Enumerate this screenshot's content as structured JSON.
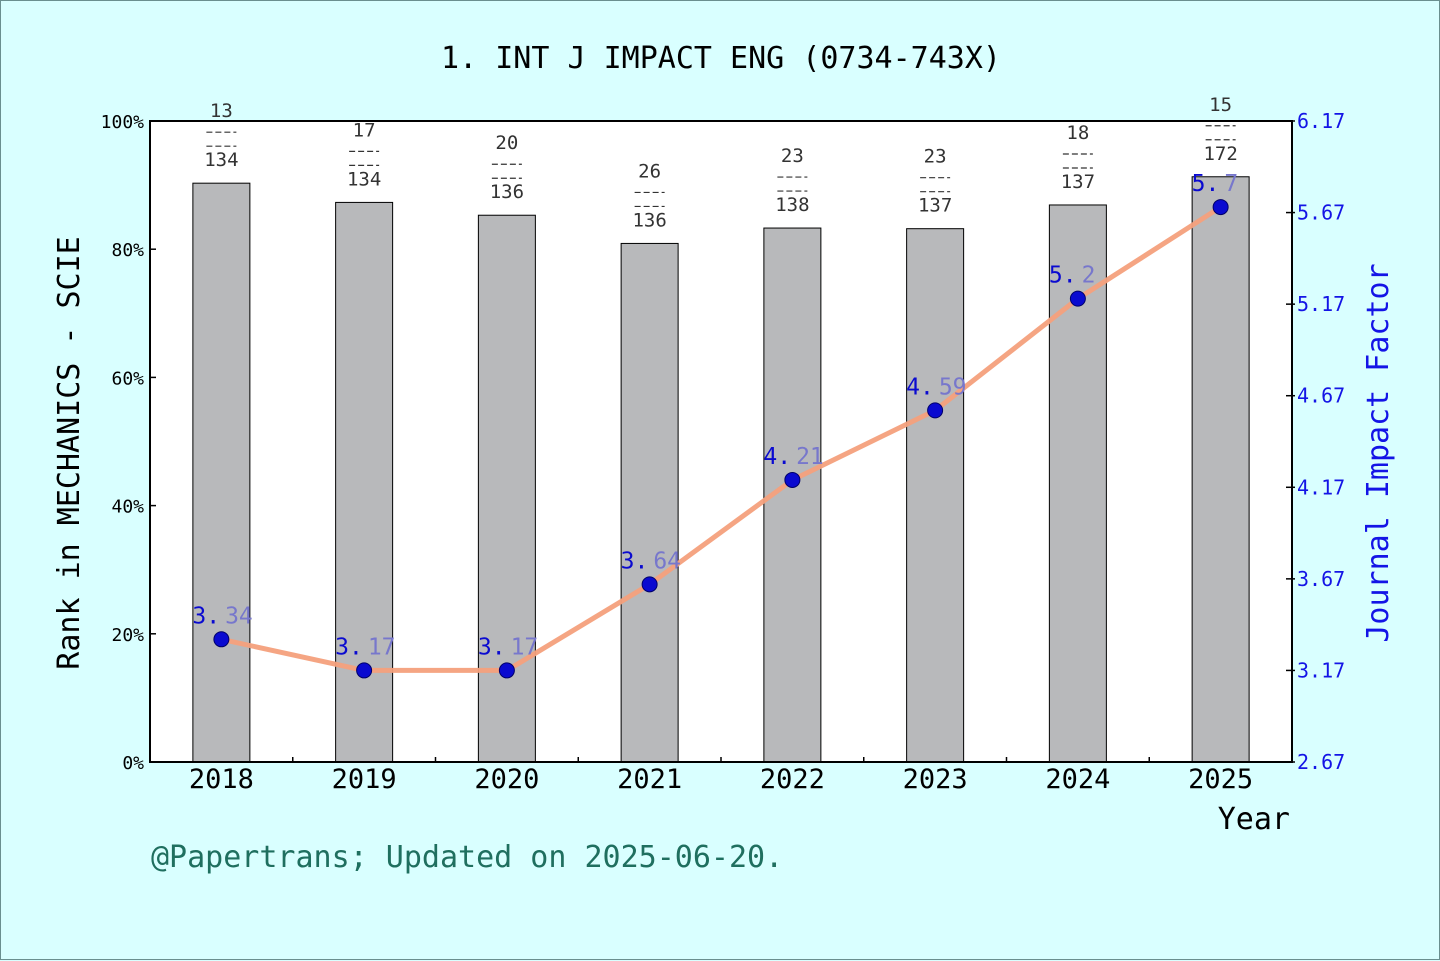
{
  "title": "1. INT J IMPACT ENG (0734-743X)",
  "footer": "@Papertrans; Updated on 2025-06-20.",
  "colors": {
    "background": "#d9ffff",
    "bar": "#b8b9bb",
    "line": "#f4a07c",
    "marker": "#0a0ad0",
    "right_axis": "#1414e6",
    "footer": "#1f6f5f"
  },
  "chart_data": {
    "type": "bar",
    "categories": [
      "2018",
      "2019",
      "2020",
      "2021",
      "2022",
      "2023",
      "2024",
      "2025"
    ],
    "xlabel": "Year",
    "ylabel": "Rank in MECHANICS - SCIE",
    "y2label": "Journal Impact Factor",
    "ylim": [
      0,
      100
    ],
    "y2lim": [
      2.67,
      6.17
    ],
    "yticks": [
      "0%",
      "20%",
      "40%",
      "60%",
      "80%",
      "100%"
    ],
    "y2ticks": [
      "2.67",
      "3.17",
      "3.67",
      "4.17",
      "4.67",
      "5.17",
      "5.67",
      "6.17"
    ],
    "series": [
      {
        "type": "bar",
        "values": [
          90.3,
          87.3,
          85.3,
          80.9,
          83.3,
          83.2,
          86.9,
          91.3
        ],
        "rank_labels": [
          {
            "rank": "13",
            "total": "134"
          },
          {
            "rank": "17",
            "total": "134"
          },
          {
            "rank": "20",
            "total": "136"
          },
          {
            "rank": "26",
            "total": "136"
          },
          {
            "rank": "23",
            "total": "138"
          },
          {
            "rank": "23",
            "total": "137"
          },
          {
            "rank": "18",
            "total": "137"
          },
          {
            "rank": "15",
            "total": "172"
          }
        ]
      },
      {
        "type": "line",
        "axis": "right",
        "values": [
          3.34,
          3.17,
          3.17,
          3.64,
          4.21,
          4.59,
          5.2,
          5.7
        ],
        "labels": [
          "3.34",
          "3.17",
          "3.17",
          "3.64",
          "4.21",
          "4.59",
          "5.2",
          "5.7"
        ]
      }
    ],
    "grid": false
  }
}
